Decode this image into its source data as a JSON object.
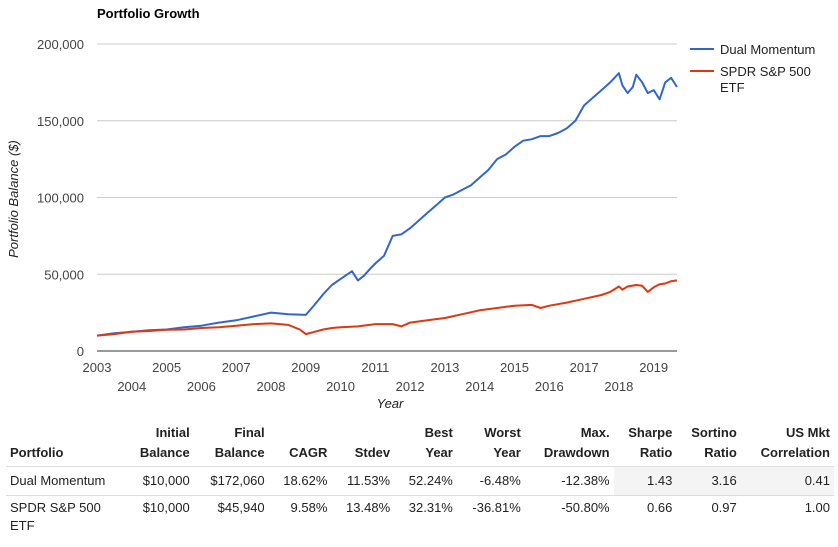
{
  "chart_data": {
    "type": "line",
    "title": "Portfolio Growth",
    "xlabel": "Year",
    "ylabel": "Portfolio Balance ($)",
    "ylim": [
      0,
      200000
    ],
    "xlim": [
      2003.0,
      2019.67
    ],
    "yticks": [
      "0",
      "50,000",
      "100,000",
      "150,000",
      "200,000"
    ],
    "xticks_top": [
      "2003",
      "2005",
      "2007",
      "2009",
      "2011",
      "2013",
      "2015",
      "2017",
      "2019"
    ],
    "xticks_bottom": [
      "2004",
      "2006",
      "2008",
      "2010",
      "2012",
      "2014",
      "2016",
      "2018"
    ],
    "legend_position": "right",
    "grid": true,
    "series": [
      {
        "name": "Dual Momentum",
        "color": "#3366cc",
        "x": [
          2003.0,
          2003.5,
          2004.0,
          2004.5,
          2005.0,
          2005.5,
          2006.0,
          2006.5,
          2007.0,
          2007.5,
          2008.0,
          2008.5,
          2009.0,
          2009.25,
          2009.5,
          2009.75,
          2010.0,
          2010.33,
          2010.5,
          2010.67,
          2010.83,
          2011.0,
          2011.25,
          2011.5,
          2011.75,
          2012.0,
          2012.25,
          2012.5,
          2012.75,
          2013.0,
          2013.25,
          2013.5,
          2013.75,
          2014.0,
          2014.25,
          2014.5,
          2014.75,
          2015.0,
          2015.25,
          2015.5,
          2015.75,
          2016.0,
          2016.25,
          2016.5,
          2016.75,
          2017.0,
          2017.25,
          2017.5,
          2017.75,
          2018.0,
          2018.1,
          2018.25,
          2018.4,
          2018.5,
          2018.67,
          2018.83,
          2019.0,
          2019.17,
          2019.33,
          2019.5,
          2019.67
        ],
        "values": [
          10000,
          11500,
          12500,
          13500,
          14000,
          15500,
          16500,
          18500,
          20000,
          22500,
          25000,
          24000,
          23500,
          30000,
          37000,
          43000,
          47000,
          52000,
          46000,
          49000,
          53000,
          57000,
          62000,
          75000,
          76000,
          80000,
          85000,
          90000,
          95000,
          100000,
          102000,
          105000,
          108000,
          113000,
          118000,
          125000,
          128000,
          133000,
          137000,
          138000,
          140000,
          140000,
          142000,
          145000,
          150000,
          160000,
          165000,
          170000,
          175000,
          181000,
          173000,
          168000,
          172000,
          180000,
          175000,
          168000,
          170000,
          164000,
          175000,
          178000,
          172000
        ]
      },
      {
        "name": "SPDR S&P 500 ETF",
        "color": "#dc3912",
        "x": [
          2003.0,
          2003.5,
          2004.0,
          2004.5,
          2005.0,
          2005.5,
          2006.0,
          2006.5,
          2007.0,
          2007.5,
          2008.0,
          2008.5,
          2008.83,
          2009.0,
          2009.25,
          2009.5,
          2009.75,
          2010.0,
          2010.5,
          2011.0,
          2011.5,
          2011.75,
          2012.0,
          2012.5,
          2013.0,
          2013.5,
          2014.0,
          2014.5,
          2015.0,
          2015.5,
          2015.75,
          2016.0,
          2016.5,
          2017.0,
          2017.5,
          2017.75,
          2018.0,
          2018.1,
          2018.25,
          2018.5,
          2018.67,
          2018.83,
          2019.0,
          2019.17,
          2019.33,
          2019.5,
          2019.67
        ],
        "values": [
          10000,
          11000,
          12500,
          13000,
          13800,
          14000,
          15000,
          15500,
          16500,
          17500,
          18000,
          17000,
          14000,
          11000,
          12500,
          14000,
          15000,
          15500,
          16000,
          17500,
          17500,
          16000,
          18500,
          20000,
          21500,
          24000,
          26500,
          28000,
          29500,
          30000,
          28000,
          29500,
          31500,
          34000,
          36500,
          38500,
          42000,
          40000,
          42000,
          43000,
          42500,
          38500,
          41500,
          43500,
          44000,
          45500,
          46000
        ]
      }
    ]
  },
  "table": {
    "headers": [
      {
        "l1": "",
        "l2": "Portfolio"
      },
      {
        "l1": "Initial",
        "l2": "Balance"
      },
      {
        "l1": "Final",
        "l2": "Balance"
      },
      {
        "l1": "",
        "l2": "CAGR"
      },
      {
        "l1": "",
        "l2": "Stdev"
      },
      {
        "l1": "Best",
        "l2": "Year"
      },
      {
        "l1": "Worst",
        "l2": "Year"
      },
      {
        "l1": "Max.",
        "l2": "Drawdown"
      },
      {
        "l1": "Sharpe",
        "l2": "Ratio"
      },
      {
        "l1": "Sortino",
        "l2": "Ratio"
      },
      {
        "l1": "US Mkt",
        "l2": "Correlation"
      }
    ],
    "rows": [
      [
        "Dual Momentum",
        "$10,000",
        "$172,060",
        "18.62%",
        "11.53%",
        "52.24%",
        "-6.48%",
        "-12.38%",
        "1.43",
        "3.16",
        "0.41"
      ],
      [
        "SPDR S&P 500 ETF",
        "$10,000",
        "$45,940",
        "9.58%",
        "13.48%",
        "32.31%",
        "-36.81%",
        "-50.80%",
        "0.66",
        "0.97",
        "1.00"
      ]
    ]
  }
}
